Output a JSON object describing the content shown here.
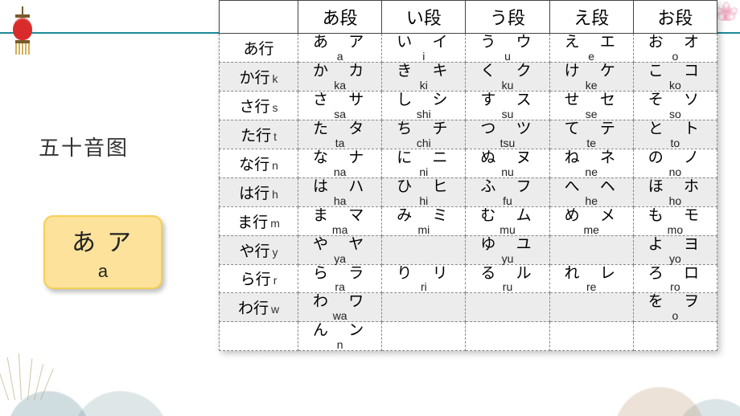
{
  "title": "五十音图",
  "accent_color": "#1b8a96",
  "highlight": {
    "hiragana": "あ",
    "katakana": "ア",
    "romaji": "a",
    "bg_color": "#fce29a",
    "border_color": "#f6cf54"
  },
  "table": {
    "header_corner": "",
    "columns": [
      "あ段",
      "い段",
      "う段",
      "え段",
      "お段"
    ],
    "rows": [
      {
        "label": "あ行",
        "sub": "",
        "shade": false,
        "cells": [
          {
            "h": "あ",
            "k": "ア",
            "r": "a"
          },
          {
            "h": "い",
            "k": "イ",
            "r": "i"
          },
          {
            "h": "う",
            "k": "ウ",
            "r": "u"
          },
          {
            "h": "え",
            "k": "エ",
            "r": "e"
          },
          {
            "h": "お",
            "k": "オ",
            "r": "o"
          }
        ]
      },
      {
        "label": "か行",
        "sub": "k",
        "shade": true,
        "cells": [
          {
            "h": "か",
            "k": "カ",
            "r": "ka"
          },
          {
            "h": "き",
            "k": "キ",
            "r": "ki"
          },
          {
            "h": "く",
            "k": "ク",
            "r": "ku"
          },
          {
            "h": "け",
            "k": "ケ",
            "r": "ke"
          },
          {
            "h": "こ",
            "k": "コ",
            "r": "ko"
          }
        ]
      },
      {
        "label": "さ行",
        "sub": "s",
        "shade": false,
        "cells": [
          {
            "h": "さ",
            "k": "サ",
            "r": "sa"
          },
          {
            "h": "し",
            "k": "シ",
            "r": "shi"
          },
          {
            "h": "す",
            "k": "ス",
            "r": "su"
          },
          {
            "h": "せ",
            "k": "セ",
            "r": "se"
          },
          {
            "h": "そ",
            "k": "ソ",
            "r": "so"
          }
        ]
      },
      {
        "label": "た行",
        "sub": "t",
        "shade": true,
        "cells": [
          {
            "h": "た",
            "k": "タ",
            "r": "ta"
          },
          {
            "h": "ち",
            "k": "チ",
            "r": "chi"
          },
          {
            "h": "つ",
            "k": "ツ",
            "r": "tsu"
          },
          {
            "h": "て",
            "k": "テ",
            "r": "te"
          },
          {
            "h": "と",
            "k": "ト",
            "r": "to"
          }
        ]
      },
      {
        "label": "な行",
        "sub": "n",
        "shade": false,
        "cells": [
          {
            "h": "な",
            "k": "ナ",
            "r": "na"
          },
          {
            "h": "に",
            "k": "ニ",
            "r": "ni"
          },
          {
            "h": "ぬ",
            "k": "ヌ",
            "r": "nu"
          },
          {
            "h": "ね",
            "k": "ネ",
            "r": "ne"
          },
          {
            "h": "の",
            "k": "ノ",
            "r": "no"
          }
        ]
      },
      {
        "label": "は行",
        "sub": "h",
        "shade": true,
        "cells": [
          {
            "h": "は",
            "k": "ハ",
            "r": "ha"
          },
          {
            "h": "ひ",
            "k": "ヒ",
            "r": "hi"
          },
          {
            "h": "ふ",
            "k": "フ",
            "r": "fu"
          },
          {
            "h": "へ",
            "k": "ヘ",
            "r": "he"
          },
          {
            "h": "ほ",
            "k": "ホ",
            "r": "ho"
          }
        ]
      },
      {
        "label": "ま行",
        "sub": "m",
        "shade": false,
        "cells": [
          {
            "h": "ま",
            "k": "マ",
            "r": "ma"
          },
          {
            "h": "み",
            "k": "ミ",
            "r": "mi"
          },
          {
            "h": "む",
            "k": "ム",
            "r": "mu"
          },
          {
            "h": "め",
            "k": "メ",
            "r": "me"
          },
          {
            "h": "も",
            "k": "モ",
            "r": "mo"
          }
        ]
      },
      {
        "label": "や行",
        "sub": "y",
        "shade": true,
        "cells": [
          {
            "h": "や",
            "k": "ヤ",
            "r": "ya"
          },
          null,
          {
            "h": "ゆ",
            "k": "ユ",
            "r": "yu"
          },
          null,
          {
            "h": "よ",
            "k": "ヨ",
            "r": "yo"
          }
        ]
      },
      {
        "label": "ら行",
        "sub": "r",
        "shade": false,
        "cells": [
          {
            "h": "ら",
            "k": "ラ",
            "r": "ra"
          },
          {
            "h": "り",
            "k": "リ",
            "r": "ri"
          },
          {
            "h": "る",
            "k": "ル",
            "r": "ru"
          },
          {
            "h": "れ",
            "k": "レ",
            "r": "re"
          },
          {
            "h": "ろ",
            "k": "ロ",
            "r": "ro"
          }
        ]
      },
      {
        "label": "わ行",
        "sub": "w",
        "shade": true,
        "cells": [
          {
            "h": "わ",
            "k": "ワ",
            "r": "wa"
          },
          null,
          null,
          null,
          {
            "h": "を",
            "k": "ヲ",
            "r": "o"
          }
        ]
      }
    ],
    "n_row": {
      "label": "",
      "cells": [
        {
          "h": "ん",
          "k": "ン",
          "r": "n"
        },
        null,
        null,
        null,
        null
      ]
    }
  }
}
